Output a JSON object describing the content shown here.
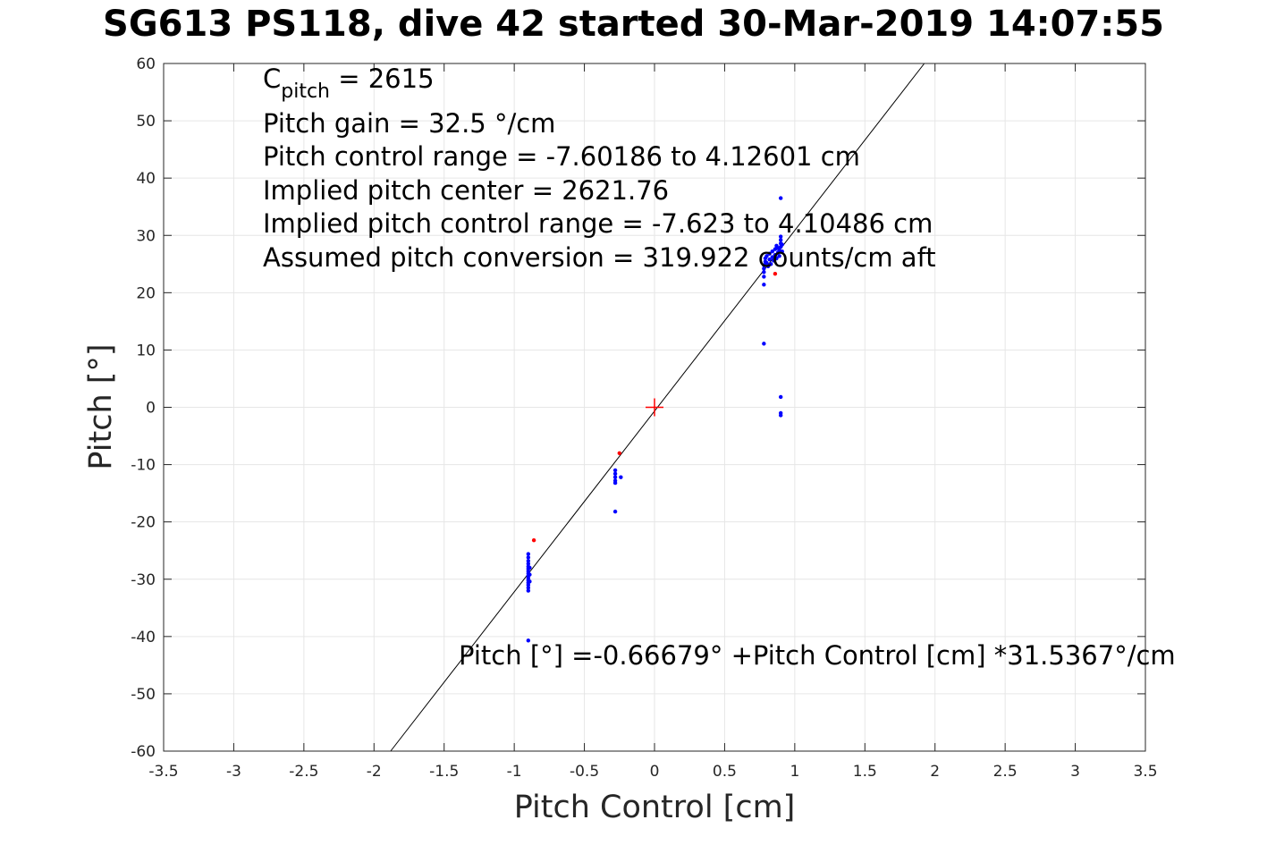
{
  "chart_data": {
    "type": "scatter",
    "title": "SG613 PS118, dive 42 started 30-Mar-2019 14:07:55",
    "xlabel": "Pitch Control [cm]",
    "ylabel": "Pitch [°]",
    "xlim": [
      -3.5,
      3.5
    ],
    "ylim": [
      -60,
      60
    ],
    "xticks": [
      -3.5,
      -3,
      -2.5,
      -2,
      -1.5,
      -1,
      -0.5,
      0,
      0.5,
      1,
      1.5,
      2,
      2.5,
      3,
      3.5
    ],
    "yticks": [
      -60,
      -50,
      -40,
      -30,
      -20,
      -10,
      0,
      10,
      20,
      30,
      40,
      50,
      60
    ],
    "grid": true,
    "annotations": {
      "cpitch_base": "C",
      "cpitch_sub": "pitch",
      "cpitch_value": " = 2615",
      "lines": [
        "Pitch gain = 32.5 °/cm",
        "Pitch control range = -7.60186 to 4.12601 cm",
        "Implied pitch center = 2621.76",
        "Implied pitch control range = -7.623 to 4.10486 cm",
        "Assumed pitch conversion = 319.922 counts/cm aft"
      ],
      "fit_label": "Pitch [°] =-0.66679° +Pitch Control [cm] *31.5367°/cm"
    },
    "fit_line": {
      "intercept": -0.66679,
      "slope": 31.5367,
      "color": "#000000"
    },
    "center_marker": {
      "x": 0,
      "y": 0,
      "color": "#ff0000"
    },
    "series": [
      {
        "color": "#0000ff",
        "points": [
          [
            -0.9,
            -25.6
          ],
          [
            -0.9,
            -26.2
          ],
          [
            -0.9,
            -26.8
          ],
          [
            -0.9,
            -27.3
          ],
          [
            -0.9,
            -27.8
          ],
          [
            -0.9,
            -28.2
          ],
          [
            -0.9,
            -28.6
          ],
          [
            -0.9,
            -29.0
          ],
          [
            -0.9,
            -29.4
          ],
          [
            -0.9,
            -29.8
          ],
          [
            -0.9,
            -30.2
          ],
          [
            -0.9,
            -30.6
          ],
          [
            -0.9,
            -31.0
          ],
          [
            -0.9,
            -31.5
          ],
          [
            -0.9,
            -32.0
          ],
          [
            -0.89,
            -28.0
          ],
          [
            -0.89,
            -29.2
          ],
          [
            -0.89,
            -30.4
          ],
          [
            -0.9,
            -40.7
          ],
          [
            -0.28,
            -11.0
          ],
          [
            -0.28,
            -11.6
          ],
          [
            -0.28,
            -12.2
          ],
          [
            -0.28,
            -12.8
          ],
          [
            -0.28,
            -13.2
          ],
          [
            -0.24,
            -12.2
          ],
          [
            -0.28,
            -18.2
          ],
          [
            0.78,
            21.4
          ],
          [
            0.78,
            22.8
          ],
          [
            0.78,
            23.6
          ],
          [
            0.78,
            24.2
          ],
          [
            0.78,
            24.8
          ],
          [
            0.79,
            25.4
          ],
          [
            0.79,
            26.0
          ],
          [
            0.8,
            25.2
          ],
          [
            0.8,
            26.4
          ],
          [
            0.81,
            24.6
          ],
          [
            0.82,
            25.8
          ],
          [
            0.82,
            26.8
          ],
          [
            0.83,
            25.0
          ],
          [
            0.84,
            26.2
          ],
          [
            0.84,
            27.2
          ],
          [
            0.85,
            25.6
          ],
          [
            0.86,
            26.6
          ],
          [
            0.86,
            27.6
          ],
          [
            0.87,
            26.0
          ],
          [
            0.87,
            28.2
          ],
          [
            0.88,
            27.0
          ],
          [
            0.88,
            27.8
          ],
          [
            0.89,
            26.4
          ],
          [
            0.89,
            27.4
          ],
          [
            0.9,
            28.0
          ],
          [
            0.9,
            28.6
          ],
          [
            0.9,
            29.2
          ],
          [
            0.9,
            29.8
          ],
          [
            0.91,
            27.2
          ],
          [
            0.91,
            28.4
          ],
          [
            0.9,
            36.5
          ],
          [
            0.78,
            11.1
          ],
          [
            0.9,
            1.8
          ],
          [
            0.9,
            -1.0
          ],
          [
            0.9,
            -1.4
          ]
        ]
      },
      {
        "color": "#ff0000",
        "points": [
          [
            -0.86,
            -23.2
          ],
          [
            -0.25,
            -8.0
          ],
          [
            0.86,
            23.3
          ]
        ]
      }
    ]
  }
}
